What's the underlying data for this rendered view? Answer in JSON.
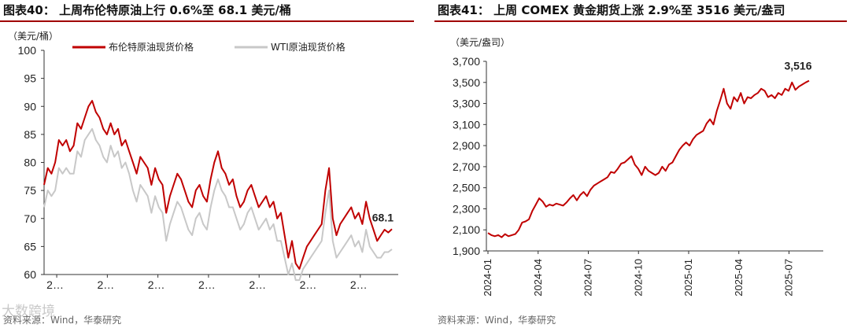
{
  "left": {
    "title": "图表40： 上周布伦特原油上行 0.6%至 68.1 美元/桶",
    "unit": "（美元/桶）",
    "footnote": "资料来源：Wind，华泰研究",
    "watermark": "大数跨境"
  },
  "right": {
    "title": "图表41： 上周 COMEX 黄金期货上涨 2.9%至 3516 美元/盎司",
    "unit": "（美元/盎司）",
    "footnote": "资料来源：Wind，华泰研究"
  },
  "colors": {
    "brent": "#c00000",
    "wti": "#c8c8c8",
    "gold": "#c00000",
    "title_rule": "#a00000"
  },
  "chart_data": [
    {
      "type": "line",
      "ylim": [
        60,
        100
      ],
      "yticks": [
        "100",
        "95",
        "90",
        "85",
        "80",
        "75",
        "70",
        "65",
        "60"
      ],
      "xticks": [
        "2…",
        "2…",
        "2…",
        "2…",
        "2…",
        "2…",
        "2…"
      ],
      "end_label": "68.1",
      "series": [
        {
          "name": "布伦特原油现货价格",
          "color": "#c00000",
          "values": [
            76,
            79,
            78,
            80,
            84,
            83,
            84,
            82,
            83,
            87,
            86,
            88,
            90,
            91,
            89,
            88,
            86,
            85,
            87,
            85,
            86,
            83,
            84,
            82,
            80,
            78,
            81,
            80,
            79,
            76,
            79,
            77,
            76,
            71,
            74,
            76,
            78,
            77,
            75,
            73,
            72,
            75,
            76,
            74,
            73,
            77,
            80,
            82,
            79,
            78,
            76,
            77,
            74,
            72,
            73,
            75,
            76,
            74,
            72,
            73,
            74,
            72,
            73,
            70,
            71,
            67,
            63,
            66,
            62,
            61,
            63,
            65,
            66,
            67,
            68,
            69,
            75,
            79,
            70,
            67,
            69,
            70,
            71,
            72,
            70,
            71,
            69,
            73,
            70,
            68,
            66,
            67,
            68,
            67.5,
            68.1
          ]
        },
        {
          "name": "WTI原油现货价格",
          "color": "#c8c8c8",
          "values": [
            72,
            75,
            74,
            75,
            79,
            78,
            79,
            78,
            78,
            82,
            81,
            84,
            85,
            86,
            84,
            83,
            81,
            80,
            83,
            81,
            82,
            79,
            80,
            78,
            75,
            73,
            76,
            75,
            74,
            71,
            74,
            72,
            71,
            66,
            69,
            71,
            73,
            72,
            70,
            68,
            67,
            70,
            71,
            69,
            68,
            72,
            75,
            77,
            75,
            74,
            72,
            72,
            70,
            68,
            69,
            71,
            72,
            70,
            68,
            69,
            70,
            68,
            69,
            66,
            66,
            63,
            60,
            62,
            59,
            59,
            61,
            62,
            63,
            64,
            65,
            66,
            71,
            75,
            66,
            63,
            64,
            65,
            66,
            67,
            65,
            66,
            64,
            68,
            65,
            64,
            63,
            63,
            64,
            64,
            64.5
          ]
        }
      ]
    },
    {
      "type": "line",
      "ylim": [
        1900,
        3700
      ],
      "yticks": [
        "3,700",
        "3,500",
        "3,300",
        "3,100",
        "2,900",
        "2,700",
        "2,500",
        "2,300",
        "2,100",
        "1,900"
      ],
      "xticks": [
        "2024-01",
        "2024-04",
        "2024-07",
        "2024-10",
        "2025-01",
        "2025-04",
        "2025-07"
      ],
      "end_label": "3,516",
      "series": [
        {
          "name": "",
          "color": "#c00000",
          "values": [
            2070,
            2050,
            2040,
            2050,
            2030,
            2060,
            2040,
            2050,
            2060,
            2100,
            2170,
            2180,
            2200,
            2280,
            2340,
            2400,
            2370,
            2320,
            2340,
            2330,
            2350,
            2340,
            2330,
            2360,
            2400,
            2430,
            2380,
            2430,
            2460,
            2420,
            2480,
            2520,
            2540,
            2560,
            2580,
            2600,
            2650,
            2640,
            2680,
            2730,
            2740,
            2770,
            2800,
            2720,
            2680,
            2620,
            2700,
            2660,
            2640,
            2620,
            2640,
            2700,
            2660,
            2720,
            2740,
            2800,
            2860,
            2900,
            2930,
            2900,
            2960,
            3000,
            3020,
            3040,
            3110,
            3150,
            3100,
            3230,
            3330,
            3440,
            3300,
            3250,
            3360,
            3320,
            3400,
            3300,
            3360,
            3350,
            3380,
            3400,
            3440,
            3420,
            3360,
            3380,
            3350,
            3400,
            3380,
            3440,
            3420,
            3500,
            3430,
            3460,
            3480,
            3500,
            3516
          ]
        }
      ]
    }
  ]
}
